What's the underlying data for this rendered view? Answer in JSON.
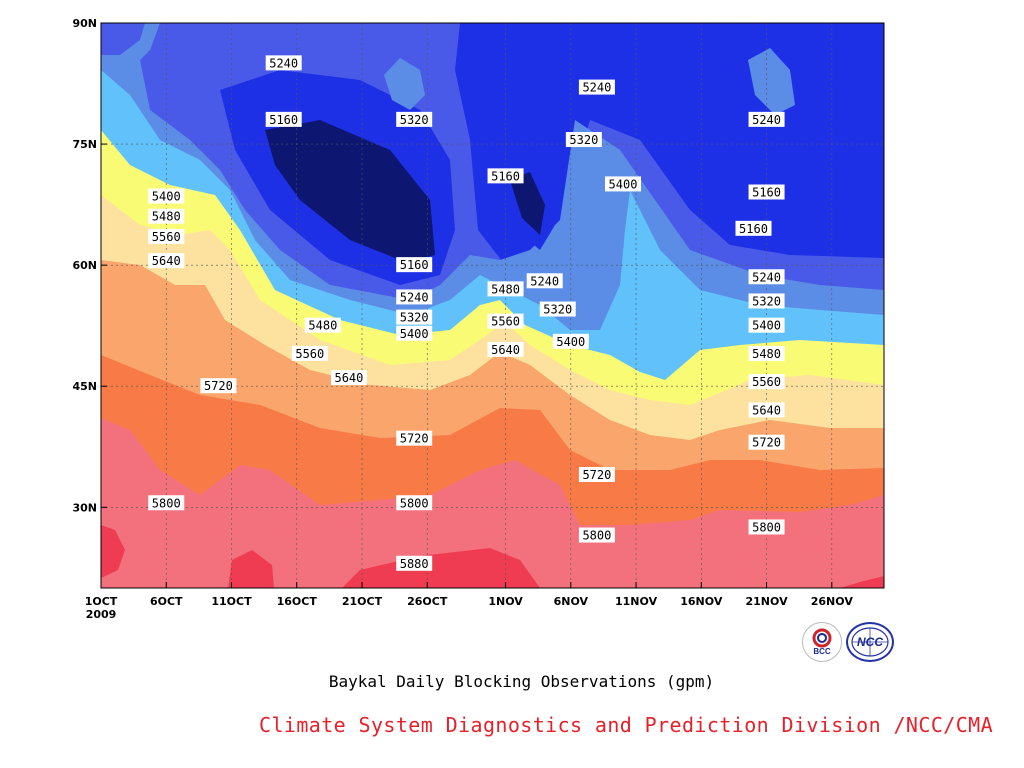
{
  "chart_data": {
    "type": "heatmap",
    "subtype": "filled-contour",
    "title": "Baykal Daily Blocking Observations (gpm)",
    "x_ticks": [
      "1OCT",
      "6OCT",
      "11OCT",
      "16OCT",
      "21OCT",
      "26OCT",
      "1NOV",
      "6NOV",
      "11NOV",
      "16NOV",
      "21NOV",
      "26NOV"
    ],
    "x_year_label": "2009",
    "x_range": [
      "2009-10-01",
      "2009-11-30"
    ],
    "y_ticks": [
      "30N",
      "45N",
      "60N",
      "75N",
      "90N"
    ],
    "y_range": [
      20,
      90
    ],
    "grid": true,
    "contour_levels": [
      5160,
      5240,
      5320,
      5400,
      5480,
      5560,
      5640,
      5720,
      5800,
      5880
    ],
    "band_colors": [
      "#0d1670",
      "#1e30e6",
      "#4a5ae8",
      "#5c8de6",
      "#61c2fb",
      "#f9fb74",
      "#fce29e",
      "#f9a56c",
      "#f87a47",
      "#f3717d",
      "#ef3c52"
    ],
    "contour_labels": [
      {
        "value": "5240",
        "date": "2009-10-15",
        "lat": 85
      },
      {
        "value": "5160",
        "date": "2009-10-15",
        "lat": 78
      },
      {
        "value": "5320",
        "date": "2009-10-25",
        "lat": 78
      },
      {
        "value": "5240",
        "date": "2009-11-08",
        "lat": 82
      },
      {
        "value": "5320",
        "date": "2009-11-07",
        "lat": 75.5
      },
      {
        "value": "5240",
        "date": "2009-11-21",
        "lat": 78
      },
      {
        "value": "5160",
        "date": "2009-11-01",
        "lat": 71
      },
      {
        "value": "5400",
        "date": "2009-11-10",
        "lat": 70
      },
      {
        "value": "5160",
        "date": "2009-11-21",
        "lat": 69
      },
      {
        "value": "5160",
        "date": "2009-11-20",
        "lat": 64.5
      },
      {
        "value": "5400",
        "date": "2009-10-06",
        "lat": 68.5
      },
      {
        "value": "5480",
        "date": "2009-10-06",
        "lat": 66
      },
      {
        "value": "5560",
        "date": "2009-10-06",
        "lat": 63.5
      },
      {
        "value": "5640",
        "date": "2009-10-06",
        "lat": 60.5
      },
      {
        "value": "5160",
        "date": "2009-10-25",
        "lat": 60
      },
      {
        "value": "5240",
        "date": "2009-10-25",
        "lat": 56
      },
      {
        "value": "5320",
        "date": "2009-10-25",
        "lat": 53.5
      },
      {
        "value": "5400",
        "date": "2009-10-25",
        "lat": 51.5
      },
      {
        "value": "5480",
        "date": "2009-10-18",
        "lat": 52.5
      },
      {
        "value": "5560",
        "date": "2009-10-17",
        "lat": 49
      },
      {
        "value": "5640",
        "date": "2009-10-20",
        "lat": 46
      },
      {
        "value": "5720",
        "date": "2009-10-10",
        "lat": 45
      },
      {
        "value": "5720",
        "date": "2009-10-25",
        "lat": 38.5
      },
      {
        "value": "5800",
        "date": "2009-10-06",
        "lat": 30.5
      },
      {
        "value": "5800",
        "date": "2009-10-25",
        "lat": 30.5
      },
      {
        "value": "5880",
        "date": "2009-10-25",
        "lat": 23
      },
      {
        "value": "5480",
        "date": "2009-11-01",
        "lat": 57
      },
      {
        "value": "5560",
        "date": "2009-11-01",
        "lat": 53
      },
      {
        "value": "5640",
        "date": "2009-11-01",
        "lat": 49.5
      },
      {
        "value": "5240",
        "date": "2009-11-04",
        "lat": 58
      },
      {
        "value": "5320",
        "date": "2009-11-05",
        "lat": 54.5
      },
      {
        "value": "5400",
        "date": "2009-11-06",
        "lat": 50.5
      },
      {
        "value": "5240",
        "date": "2009-11-21",
        "lat": 58.5
      },
      {
        "value": "5320",
        "date": "2009-11-21",
        "lat": 55.5
      },
      {
        "value": "5400",
        "date": "2009-11-21",
        "lat": 52.5
      },
      {
        "value": "5480",
        "date": "2009-11-21",
        "lat": 49
      },
      {
        "value": "5560",
        "date": "2009-11-21",
        "lat": 45.5
      },
      {
        "value": "5640",
        "date": "2009-11-21",
        "lat": 42
      },
      {
        "value": "5720",
        "date": "2009-11-21",
        "lat": 38
      },
      {
        "value": "5720",
        "date": "2009-11-08",
        "lat": 34
      },
      {
        "value": "5800",
        "date": "2009-11-08",
        "lat": 26.5
      },
      {
        "value": "5800",
        "date": "2009-11-21",
        "lat": 27.5
      }
    ]
  },
  "footer": {
    "credit": "Climate System Diagnostics and Prediction Division /NCC/CMA",
    "logos": [
      {
        "name": "bcc-logo",
        "text": "BCC"
      },
      {
        "name": "ncc-logo",
        "text": "NCC"
      }
    ]
  }
}
